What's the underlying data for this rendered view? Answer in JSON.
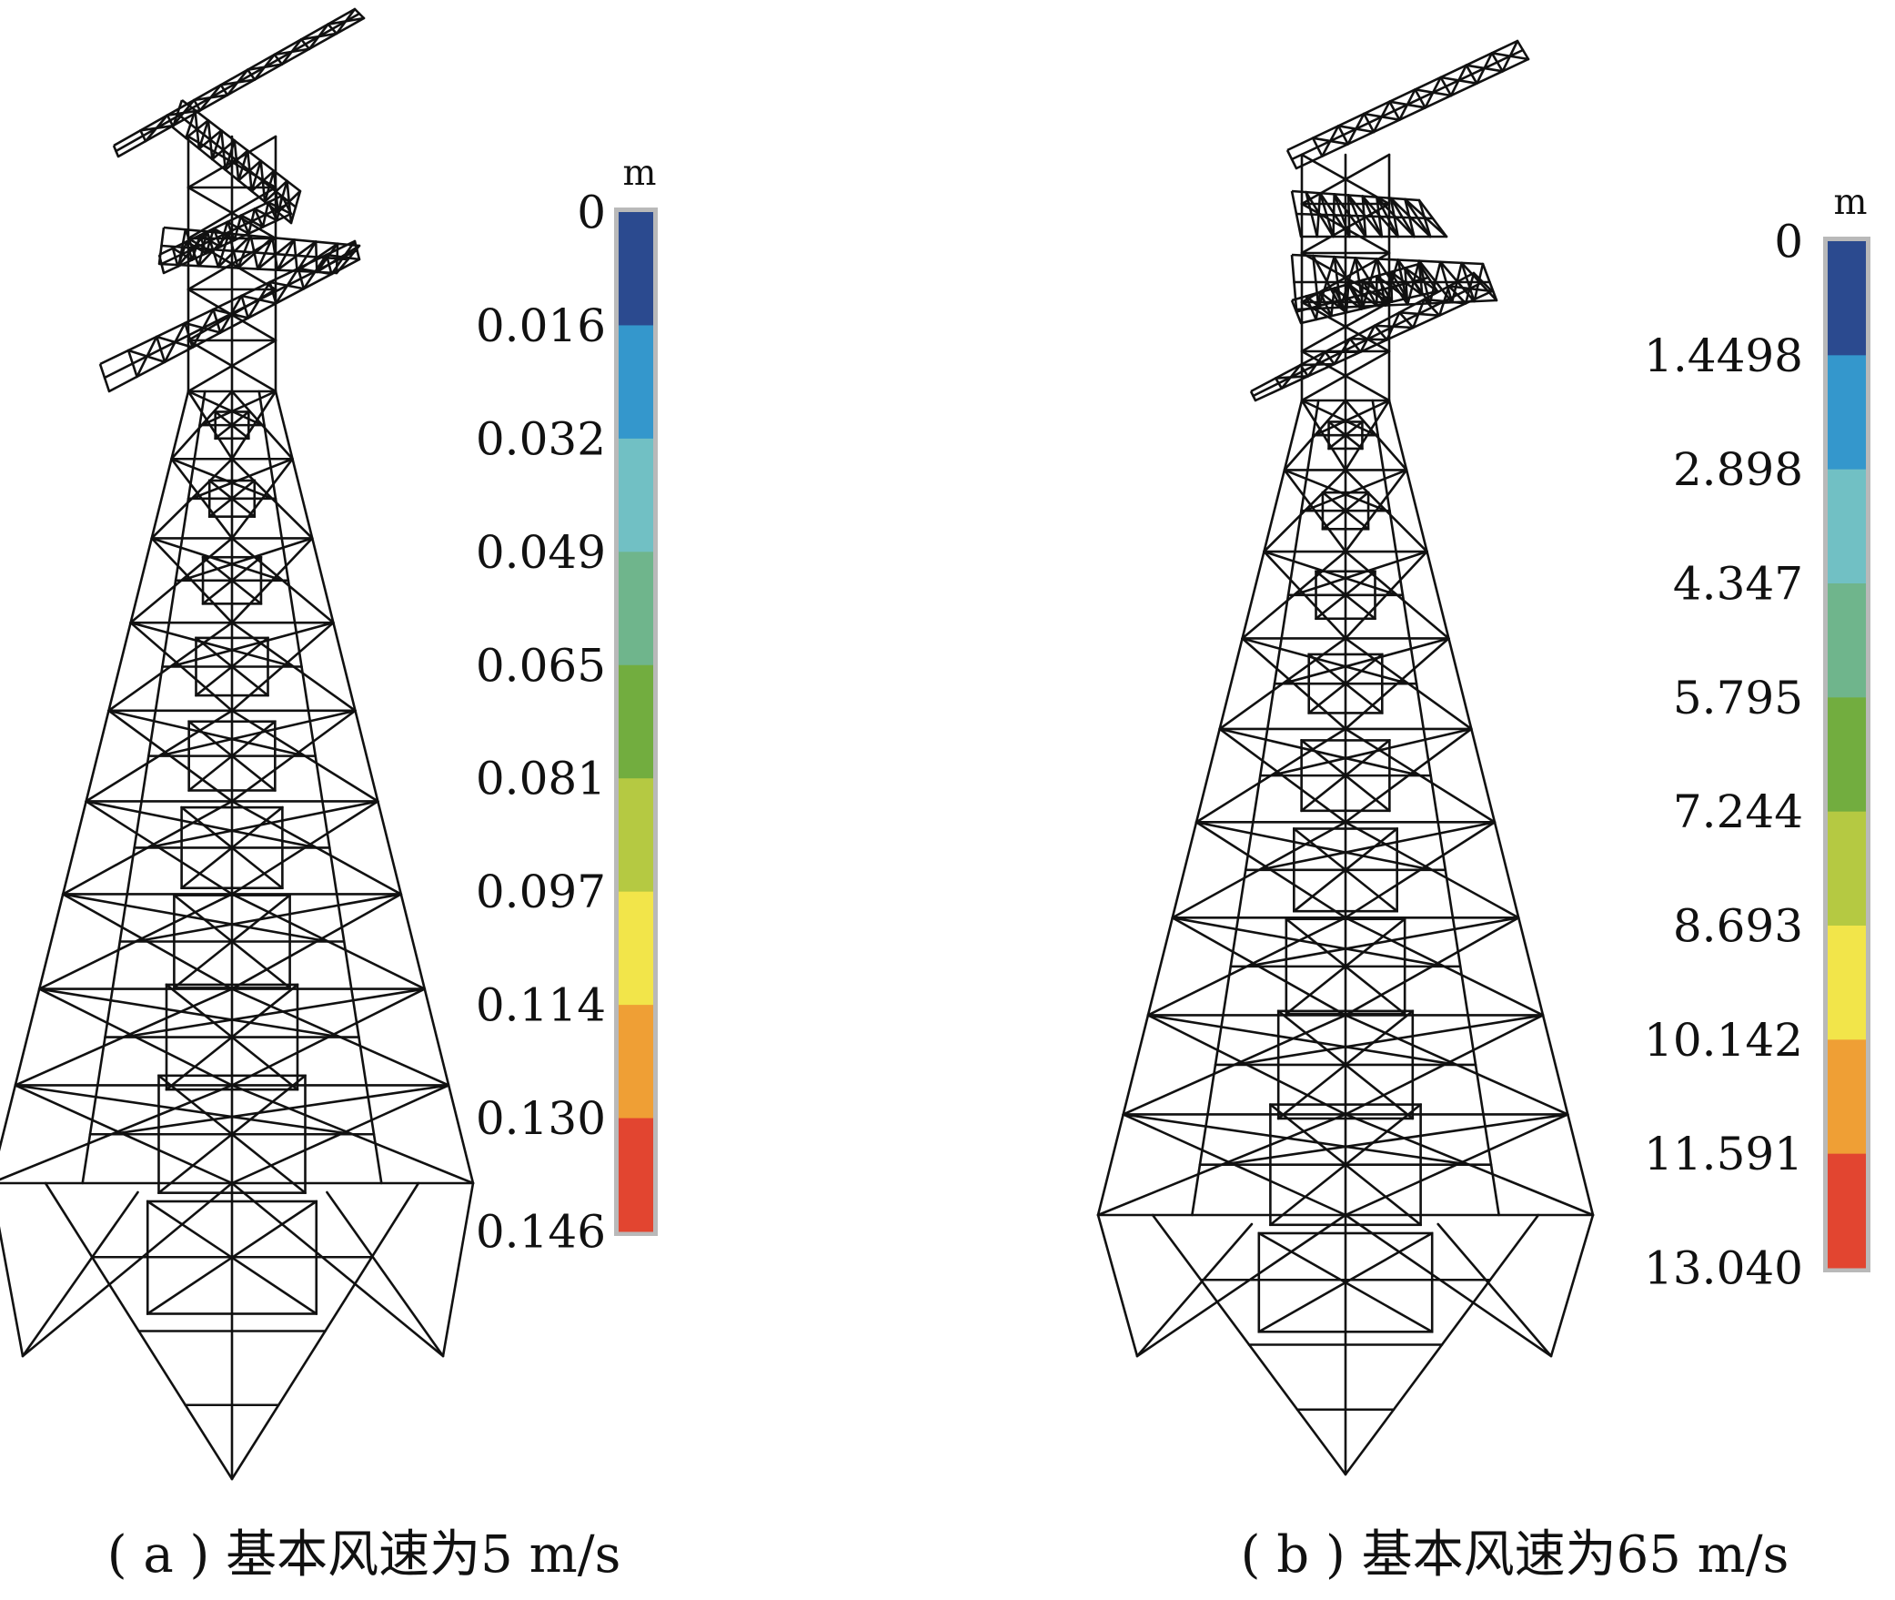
{
  "panels": [
    {
      "id": "a",
      "caption": "( a ) 基本风速为5 m/s",
      "legend": {
        "unit": "m",
        "labels": [
          "0",
          "0.016",
          "0.032",
          "0.049",
          "0.065",
          "0.081",
          "0.097",
          "0.114",
          "0.130",
          "0.146"
        ],
        "colors": [
          "#2b4a8f",
          "#3497cc",
          "#71c0c4",
          "#6fb58c",
          "#72ad3f",
          "#b5c942",
          "#f2e54a",
          "#ef9f35",
          "#e24530"
        ]
      }
    },
    {
      "id": "b",
      "caption": "( b ) 基本风速为65 m/s",
      "legend": {
        "unit": "m",
        "labels": [
          "0",
          "1.4498",
          "2.898",
          "4.347",
          "5.795",
          "7.244",
          "8.693",
          "10.142",
          "11.591",
          "13.040"
        ],
        "colors": [
          "#2b4a8f",
          "#3497cc",
          "#71c0c4",
          "#6fb58c",
          "#72ad3f",
          "#b5c942",
          "#f2e54a",
          "#ef9f35",
          "#e24530"
        ]
      }
    }
  ]
}
